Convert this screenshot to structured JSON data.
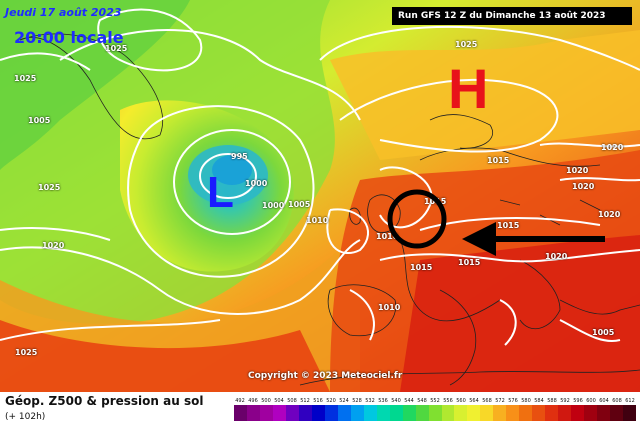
{
  "header": {
    "date_line": "Jeudi 17 août 2023",
    "time_line": "20:00 locale",
    "run_info": "Run GFS 12 Z du Dimanche 13 août 2023"
  },
  "pressure_centres": [
    {
      "symbol": "L",
      "color": "#1a1aff"
    },
    {
      "symbol": "H",
      "color": "#e8121a"
    }
  ],
  "isobar_labels": [
    "995",
    "1000",
    "1000",
    "1005",
    "1010",
    "1015",
    "1015",
    "1020",
    "1020",
    "1025",
    "1025",
    "1025",
    "1020",
    "1020",
    "1015",
    "1015",
    "1010",
    "1020",
    "1005",
    "1010",
    "1020",
    "1025",
    "1015",
    "1005",
    "1025"
  ],
  "copyright": "Copyright © 2023 Meteociel.fr",
  "footer": {
    "title": "Géop. Z500 & pression au sol",
    "subtitle": "(+ 102h)"
  },
  "scale": {
    "ticks": [
      "492",
      "496",
      "500",
      "504",
      "508",
      "512",
      "516",
      "520",
      "524",
      "528",
      "532",
      "536",
      "540",
      "544",
      "548",
      "552",
      "556",
      "560",
      "564",
      "568",
      "572",
      "576",
      "580",
      "584",
      "588",
      "592",
      "596",
      "600",
      "604",
      "608",
      "612"
    ],
    "colors": [
      "#6a006a",
      "#8a008a",
      "#a000a0",
      "#b000c0",
      "#7000c0",
      "#3000c0",
      "#0000c8",
      "#0030e0",
      "#0070f0",
      "#00a0f0",
      "#00c8e0",
      "#00d8b0",
      "#00d890",
      "#20d860",
      "#50d840",
      "#80e030",
      "#b0e830",
      "#d8f030",
      "#f0f030",
      "#f8d828",
      "#f8b020",
      "#f89018",
      "#f07010",
      "#e85010",
      "#e03010",
      "#d01810",
      "#c00010",
      "#a00010",
      "#800010",
      "#600010",
      "#400010"
    ]
  },
  "annotations": {
    "circle_color": "#000000",
    "arrow_color": "#000000"
  }
}
